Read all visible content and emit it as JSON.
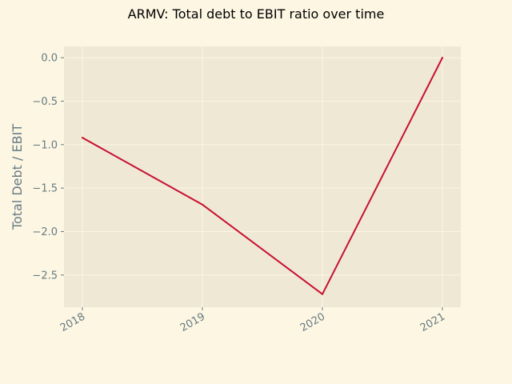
{
  "chart_data": {
    "type": "line",
    "title": "ARMV: Total debt to EBIT ratio over time",
    "xlabel": "",
    "ylabel": "Total Debt / EBIT",
    "categories": [
      "2018",
      "2019",
      "2020",
      "2021"
    ],
    "series": [
      {
        "values": [
          -0.92,
          -1.69,
          -2.72,
          0.0
        ],
        "color": "#c8102e"
      }
    ],
    "ylim": [
      -2.87,
      0.13
    ],
    "yticks": [
      0.0,
      -0.5,
      -1.0,
      -1.5,
      -2.0,
      -2.5
    ],
    "ytick_labels": [
      "0.0",
      "−0.5",
      "−1.0",
      "−1.5",
      "−2.0",
      "−2.5"
    ],
    "grid": true,
    "legend": "none",
    "colors": {
      "figure_bg": "#fdf6e3",
      "axes_bg": "#eee8d5",
      "grid": "#fdf6e3",
      "text": "#657b83"
    }
  }
}
